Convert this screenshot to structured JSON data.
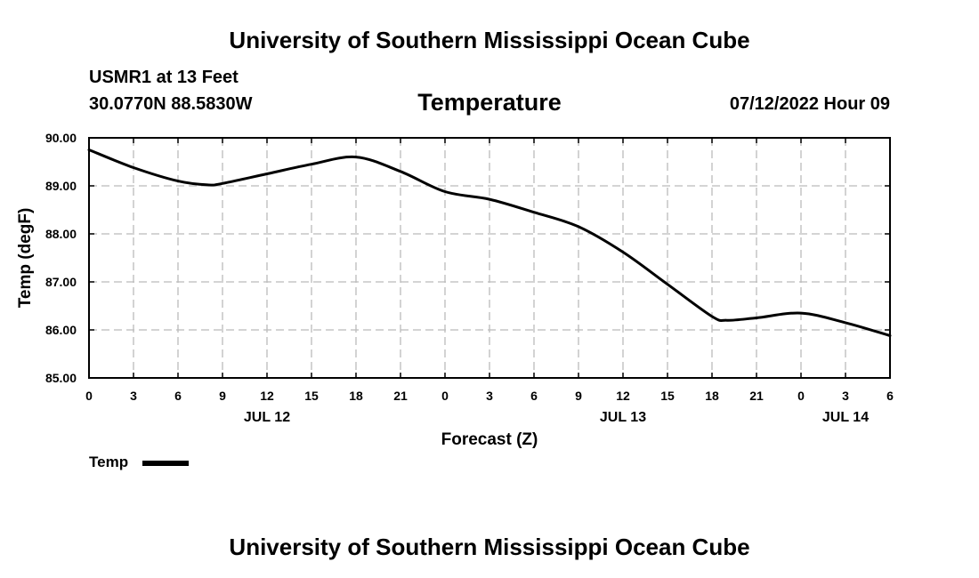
{
  "header": {
    "title": "University of Southern Mississippi Ocean Cube",
    "station": "USMR1 at 13 Feet",
    "coordinates": "30.0770N  88.5830W",
    "variable": "Temperature",
    "datetime": "07/12/2022 Hour 09"
  },
  "footer": {
    "title": "University of Southern Mississippi Ocean Cube"
  },
  "legend": {
    "label": "Temp",
    "color": "#000000"
  },
  "chart_data": {
    "type": "line",
    "title": "Temperature",
    "xlabel": "Forecast (Z)",
    "ylabel": "Temp (degF)",
    "xlim": [
      0,
      54
    ],
    "ylim": [
      85.0,
      90.0
    ],
    "x_tick_values": [
      0,
      3,
      6,
      9,
      12,
      15,
      18,
      21,
      24,
      27,
      30,
      33,
      36,
      39,
      42,
      45,
      48,
      51,
      54
    ],
    "x_tick_labels": [
      "0",
      "3",
      "6",
      "9",
      "12",
      "15",
      "18",
      "21",
      "0",
      "3",
      "6",
      "9",
      "12",
      "15",
      "18",
      "21",
      "0",
      "3",
      "6"
    ],
    "date_labels": [
      {
        "x": 12,
        "label": "JUL 12"
      },
      {
        "x": 36,
        "label": "JUL 13"
      },
      {
        "x": 51,
        "label": "JUL 14"
      }
    ],
    "y_ticks": [
      85.0,
      86.0,
      87.0,
      88.0,
      89.0,
      90.0
    ],
    "y_tick_labels": [
      "85.00",
      "86.00",
      "87.00",
      "88.00",
      "89.00",
      "90.00"
    ],
    "grid": true,
    "series": [
      {
        "name": "Temp",
        "color": "#000000",
        "x": [
          0,
          3,
          6,
          8,
          9,
          12,
          15,
          18,
          21,
          24,
          27,
          30,
          33,
          36,
          39,
          42,
          43,
          45,
          48,
          51,
          54
        ],
        "values": [
          89.75,
          89.38,
          89.1,
          89.02,
          89.05,
          89.25,
          89.45,
          89.6,
          89.3,
          88.88,
          88.72,
          88.45,
          88.15,
          87.62,
          86.95,
          86.28,
          86.2,
          86.25,
          86.35,
          86.15,
          85.88
        ]
      }
    ]
  }
}
